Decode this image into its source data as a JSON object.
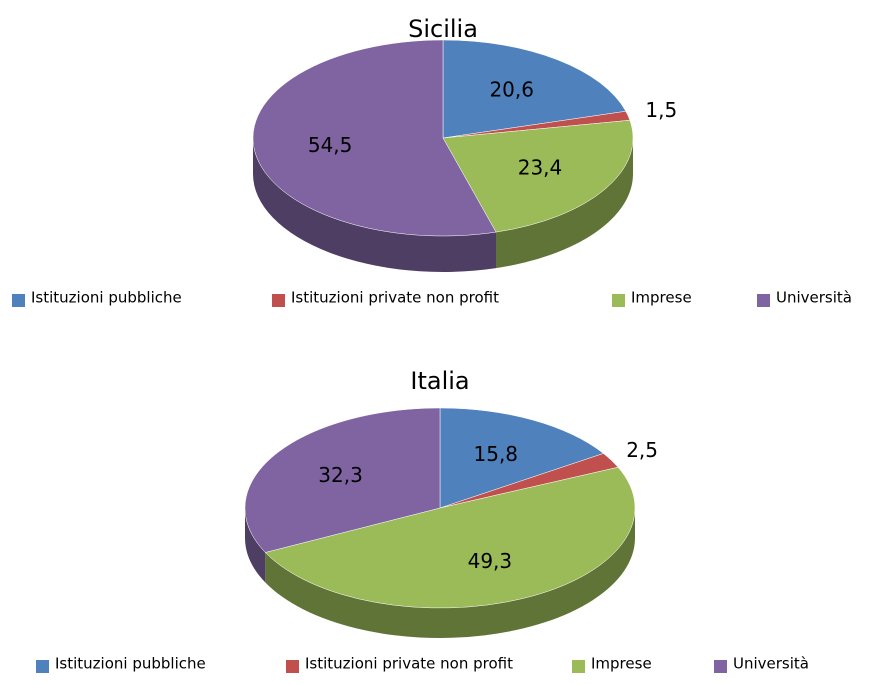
{
  "chart_data": [
    {
      "type": "pie",
      "title": "Sicilia",
      "categories": [
        "Istituzioni pubbliche",
        "Istituzioni private non profit",
        "Imprese",
        "Università"
      ],
      "values": [
        20.6,
        1.5,
        23.4,
        54.5
      ],
      "value_labels": [
        "20,6",
        "1,5",
        "23,4",
        "54,5"
      ],
      "colors": [
        "#4f81bd",
        "#c0504d",
        "#9bbb59",
        "#8064a2"
      ]
    },
    {
      "type": "pie",
      "title": "Italia",
      "categories": [
        "Istituzioni pubbliche",
        "Istituzioni private non profit",
        "Imprese",
        "Università"
      ],
      "values": [
        15.8,
        2.5,
        49.3,
        32.3
      ],
      "value_labels": [
        "15,8",
        "2,5",
        "49,3",
        "32,3"
      ],
      "colors": [
        "#4f81bd",
        "#c0504d",
        "#9bbb59",
        "#8064a2"
      ]
    }
  ]
}
